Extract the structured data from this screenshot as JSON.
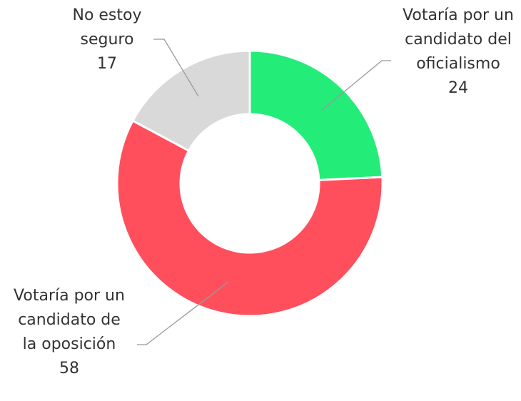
{
  "chart_data": {
    "type": "donut",
    "categories": [
      "Votaría por un candidato del oficialismo",
      "Votaría por un candidato de la oposición",
      "No estoy seguro"
    ],
    "values": [
      24,
      58,
      17
    ],
    "colors": [
      "#23ec79",
      "#ff4f5d",
      "#d9d9d9"
    ]
  }
}
